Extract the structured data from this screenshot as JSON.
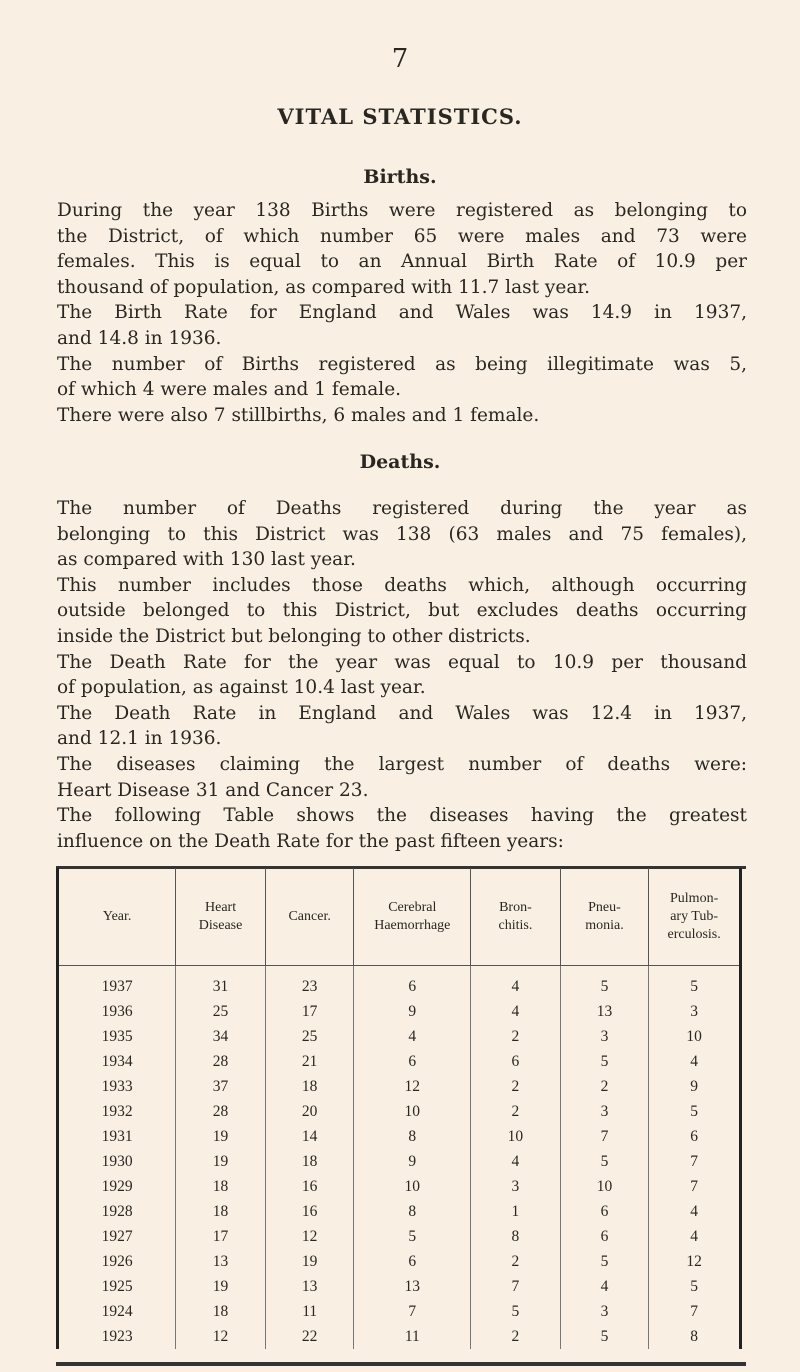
{
  "page_number": "7",
  "title": "VITAL STATISTICS.",
  "births": {
    "heading": "Births.",
    "lines": [
      "During the year 138 Births were registered as belonging to",
      "the District, of which number 65 were males and 73 were",
      "females. This is equal to an Annual Birth Rate of 10.9 per",
      "thousand of population, as compared with 11.7 last year.",
      "The Birth Rate for England and Wales was 14.9 in 1937,",
      "and 14.8 in 1936.",
      "The number of Births registered as being illegitimate was 5,",
      "of which 4 were males and 1 female.",
      "There were also 7 stillbirths, 6 males and 1 female."
    ]
  },
  "deaths": {
    "heading": "Deaths.",
    "lines": [
      "The number of Deaths registered during the year as",
      "belonging to this District was 138 (63 males and 75 females),",
      "as compared with 130 last year.",
      "This number includes those deaths which, although occurring",
      "outside belonged to this District, but excludes deaths occurring",
      "inside the District but belonging to other districts.",
      "The Death Rate for the year was equal to 10.9 per thousand",
      "of population, as against 10.4 last year.",
      "The Death Rate in England and Wales was 12.4 in 1937,",
      "and 12.1 in 1936.",
      "The diseases claiming the largest number of deaths were:",
      "Heart Disease 31 and Cancer 23.",
      "The following Table shows the diseases having the greatest",
      "influence on the Death Rate for the past fifteen years:"
    ]
  },
  "table": {
    "headers": [
      [
        "Year."
      ],
      [
        "Heart",
        "Disease"
      ],
      [
        "Cancer."
      ],
      [
        "Cerebral",
        "Haemorrhage"
      ],
      [
        "Bron-",
        "chitis."
      ],
      [
        "Pneu-",
        "monia."
      ],
      [
        "Pulmon-",
        "ary Tub-",
        "erculosis."
      ]
    ],
    "rows": [
      [
        "1937",
        "31",
        "23",
        "6",
        "4",
        "5",
        "5"
      ],
      [
        "1936",
        "25",
        "17",
        "9",
        "4",
        "13",
        "3"
      ],
      [
        "1935",
        "34",
        "25",
        "4",
        "2",
        "3",
        "10"
      ],
      [
        "1934",
        "28",
        "21",
        "6",
        "6",
        "5",
        "4"
      ],
      [
        "1933",
        "37",
        "18",
        "12",
        "2",
        "2",
        "9"
      ],
      [
        "1932",
        "28",
        "20",
        "10",
        "2",
        "3",
        "5"
      ],
      [
        "1931",
        "19",
        "14",
        "8",
        "10",
        "7",
        "6"
      ],
      [
        "1930",
        "19",
        "18",
        "9",
        "4",
        "5",
        "7"
      ],
      [
        "1929",
        "18",
        "16",
        "10",
        "3",
        "10",
        "7"
      ],
      [
        "1928",
        "18",
        "16",
        "8",
        "1",
        "6",
        "4"
      ],
      [
        "1927",
        "17",
        "12",
        "5",
        "8",
        "6",
        "4"
      ],
      [
        "1926",
        "13",
        "19",
        "6",
        "2",
        "5",
        "12"
      ],
      [
        "1925",
        "19",
        "13",
        "13",
        "7",
        "4",
        "5"
      ],
      [
        "1924",
        "18",
        "11",
        "7",
        "5",
        "3",
        "7"
      ],
      [
        "1923",
        "12",
        "22",
        "11",
        "2",
        "5",
        "8"
      ]
    ]
  }
}
